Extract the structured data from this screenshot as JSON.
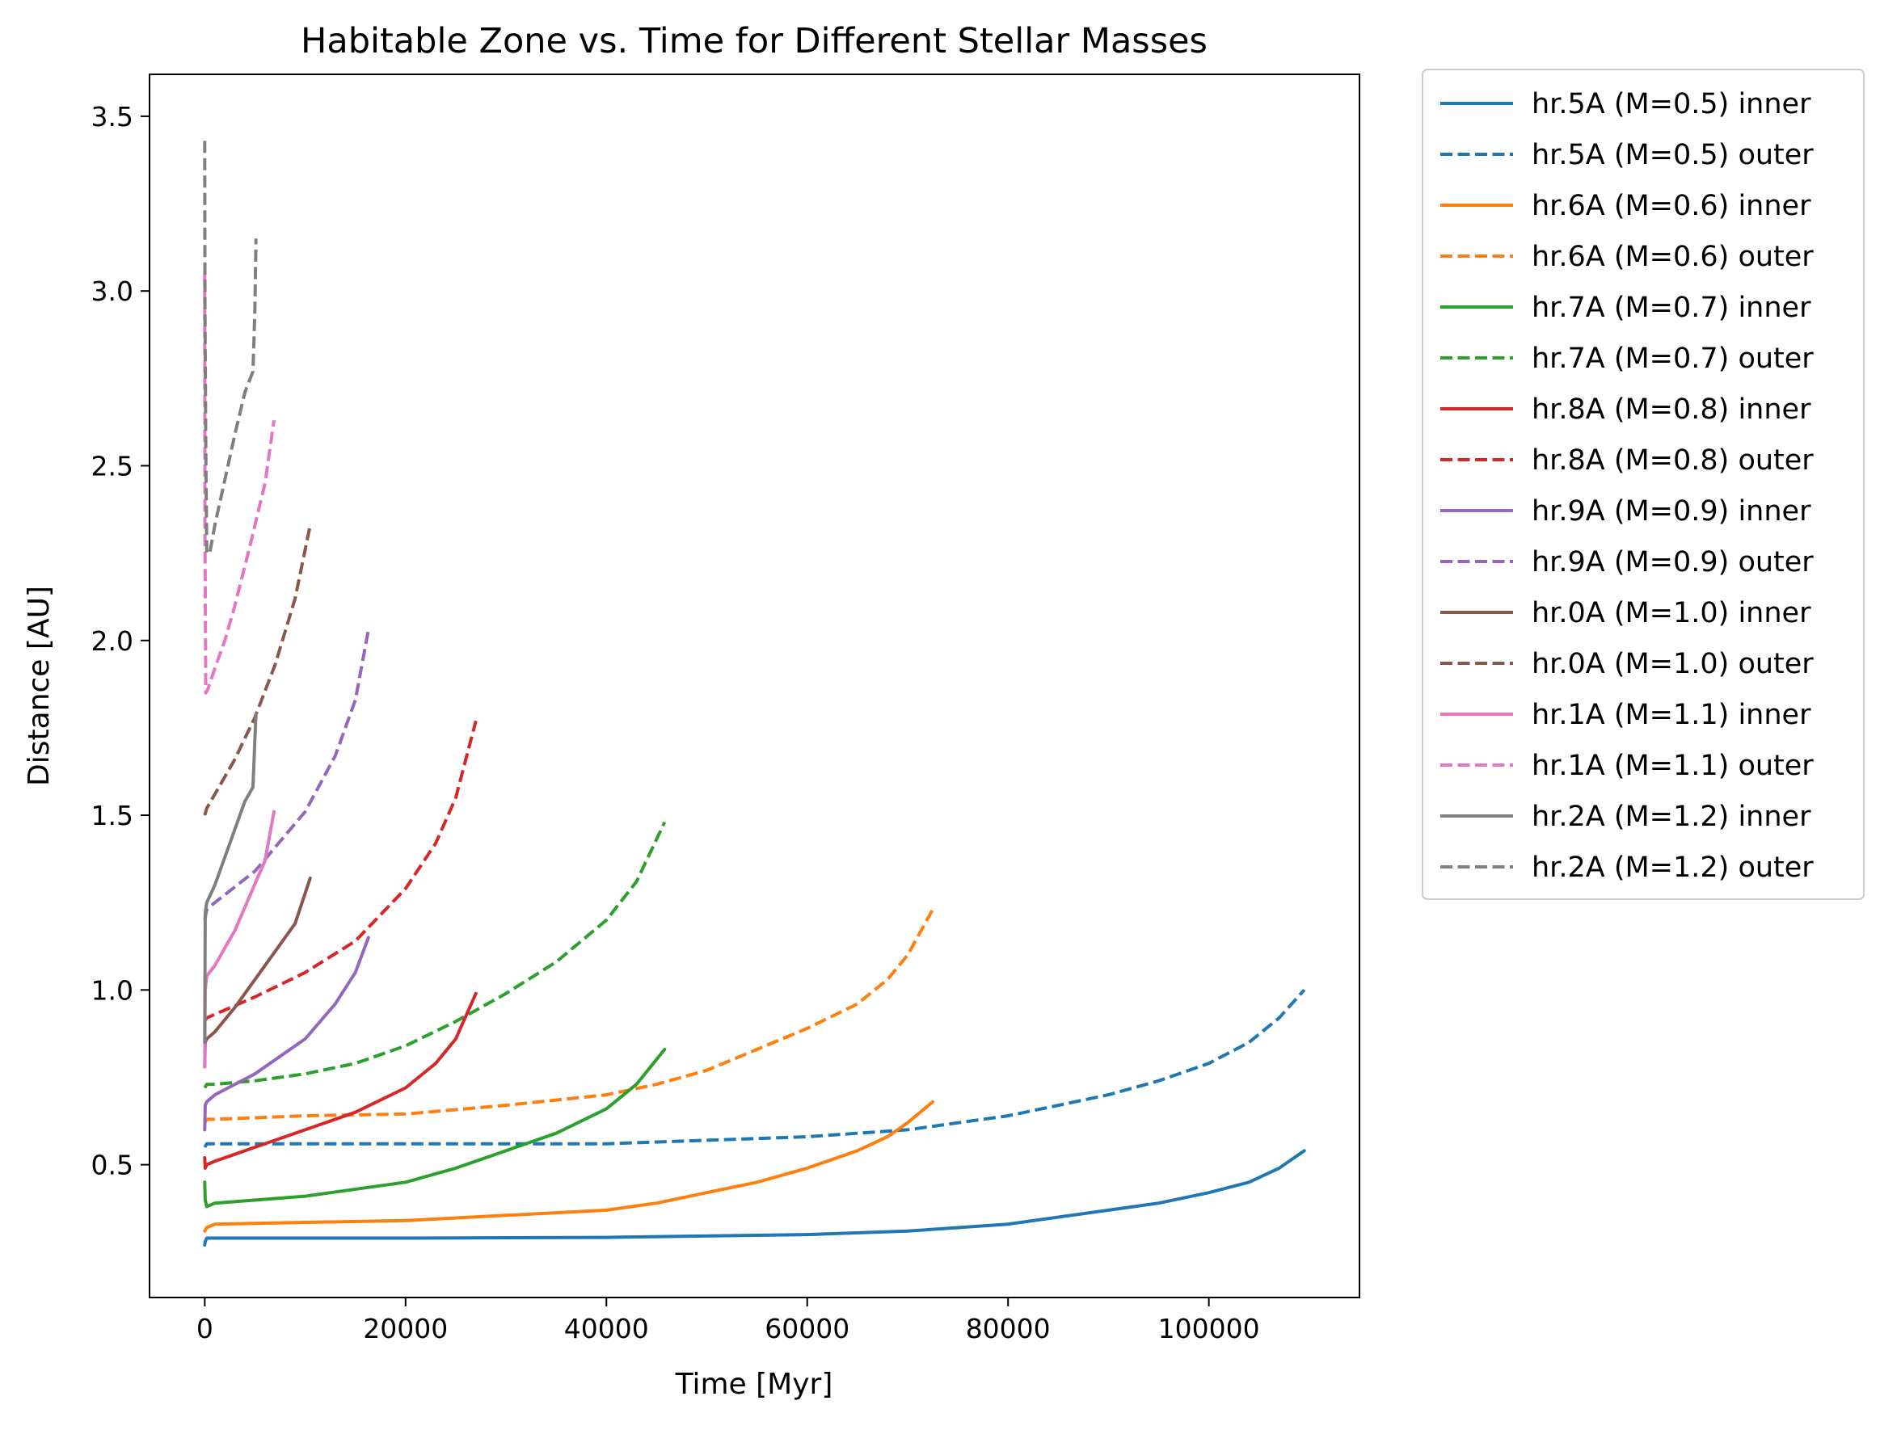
{
  "chart_data": {
    "type": "line",
    "title": "Habitable Zone vs. Time for Different Stellar Masses",
    "xlabel": "Time [Myr]",
    "ylabel": "Distance [AU]",
    "xlim": [
      -5500,
      115000
    ],
    "ylim": [
      0.12,
      3.62
    ],
    "xticks": [
      0,
      20000,
      40000,
      60000,
      80000,
      100000
    ],
    "xtick_labels": [
      "0",
      "20000",
      "40000",
      "60000",
      "80000",
      "100000"
    ],
    "yticks": [
      0.5,
      1.0,
      1.5,
      2.0,
      2.5,
      3.0,
      3.5
    ],
    "ytick_labels": [
      "0.5",
      "1.0",
      "1.5",
      "2.0",
      "2.5",
      "3.0",
      "3.5"
    ],
    "grid": false,
    "legend_position": "outside-right-top",
    "series": [
      {
        "name": "hr.5A (M=0.5) inner",
        "color": "#1f77b4",
        "style": "solid",
        "x": [
          0,
          50,
          200,
          1000,
          20000,
          40000,
          60000,
          70000,
          80000,
          90000,
          95000,
          100000,
          104000,
          107000,
          109500
        ],
        "y": [
          0.27,
          0.28,
          0.29,
          0.29,
          0.29,
          0.292,
          0.3,
          0.31,
          0.33,
          0.37,
          0.39,
          0.42,
          0.45,
          0.49,
          0.54
        ]
      },
      {
        "name": "hr.5A (M=0.5) outer",
        "color": "#1f77b4",
        "style": "dashed",
        "x": [
          0,
          200,
          1000,
          20000,
          40000,
          60000,
          70000,
          80000,
          90000,
          95000,
          100000,
          104000,
          107000,
          109500
        ],
        "y": [
          0.55,
          0.56,
          0.56,
          0.56,
          0.56,
          0.58,
          0.6,
          0.64,
          0.7,
          0.74,
          0.79,
          0.85,
          0.92,
          1.0
        ]
      },
      {
        "name": "hr.6A (M=0.6) inner",
        "color": "#ff7f0e",
        "style": "solid",
        "x": [
          0,
          200,
          1000,
          10000,
          20000,
          30000,
          40000,
          45000,
          50000,
          55000,
          60000,
          65000,
          68000,
          70000,
          72500
        ],
        "y": [
          0.31,
          0.32,
          0.33,
          0.335,
          0.34,
          0.355,
          0.37,
          0.39,
          0.42,
          0.45,
          0.49,
          0.54,
          0.58,
          0.62,
          0.68
        ]
      },
      {
        "name": "hr.6A (M=0.6) outer",
        "color": "#ff7f0e",
        "style": "dashed",
        "x": [
          0,
          200,
          1000,
          10000,
          20000,
          30000,
          40000,
          45000,
          50000,
          55000,
          60000,
          65000,
          68000,
          70000,
          72500
        ],
        "y": [
          0.62,
          0.63,
          0.63,
          0.64,
          0.645,
          0.67,
          0.7,
          0.73,
          0.77,
          0.83,
          0.89,
          0.96,
          1.03,
          1.1,
          1.23
        ]
      },
      {
        "name": "hr.7A (M=0.7) inner",
        "color": "#2ca02c",
        "style": "solid",
        "x": [
          0,
          50,
          200,
          1000,
          10000,
          20000,
          25000,
          30000,
          35000,
          40000,
          43000,
          45800
        ],
        "y": [
          0.45,
          0.4,
          0.38,
          0.39,
          0.41,
          0.45,
          0.49,
          0.54,
          0.59,
          0.66,
          0.73,
          0.83
        ]
      },
      {
        "name": "hr.7A (M=0.7) outer",
        "color": "#2ca02c",
        "style": "dashed",
        "x": [
          0,
          200,
          1000,
          5000,
          10000,
          15000,
          20000,
          25000,
          30000,
          35000,
          40000,
          43000,
          45800
        ],
        "y": [
          0.72,
          0.73,
          0.73,
          0.74,
          0.76,
          0.79,
          0.84,
          0.91,
          0.99,
          1.08,
          1.2,
          1.31,
          1.48
        ]
      },
      {
        "name": "hr.8A (M=0.8) inner",
        "color": "#d62728",
        "style": "solid",
        "x": [
          0,
          50,
          200,
          1000,
          5000,
          10000,
          15000,
          20000,
          23000,
          25000,
          27000
        ],
        "y": [
          0.52,
          0.49,
          0.5,
          0.51,
          0.55,
          0.6,
          0.65,
          0.72,
          0.79,
          0.86,
          0.99
        ]
      },
      {
        "name": "hr.8A (M=0.8) outer",
        "color": "#d62728",
        "style": "dashed",
        "x": [
          0,
          200,
          1000,
          5000,
          10000,
          15000,
          20000,
          23000,
          25000,
          27000
        ],
        "y": [
          0.91,
          0.92,
          0.93,
          0.98,
          1.05,
          1.14,
          1.29,
          1.42,
          1.55,
          1.77
        ]
      },
      {
        "name": "hr.9A (M=0.9) inner",
        "color": "#9467bd",
        "style": "solid",
        "x": [
          0,
          50,
          200,
          1000,
          5000,
          10000,
          13000,
          15000,
          16300
        ],
        "y": [
          0.6,
          0.67,
          0.68,
          0.7,
          0.76,
          0.86,
          0.96,
          1.05,
          1.15
        ]
      },
      {
        "name": "hr.9A (M=0.9) outer",
        "color": "#9467bd",
        "style": "dashed",
        "x": [
          0,
          200,
          1000,
          5000,
          10000,
          13000,
          15000,
          16300
        ],
        "y": [
          1.2,
          1.23,
          1.25,
          1.34,
          1.51,
          1.67,
          1.83,
          2.03
        ]
      },
      {
        "name": "hr.0A (M=1.0) inner",
        "color": "#8c564b",
        "style": "solid",
        "x": [
          0,
          50,
          200,
          1000,
          3000,
          5000,
          7000,
          9000,
          10500
        ],
        "y": [
          0.78,
          0.85,
          0.86,
          0.88,
          0.95,
          1.03,
          1.11,
          1.19,
          1.32
        ]
      },
      {
        "name": "hr.0A (M=1.0) outer",
        "color": "#8c564b",
        "style": "dashed",
        "x": [
          0,
          200,
          1000,
          3000,
          5000,
          7000,
          9000,
          10500
        ],
        "y": [
          1.5,
          1.52,
          1.56,
          1.66,
          1.78,
          1.93,
          2.12,
          2.33
        ]
      },
      {
        "name": "hr.1A (M=1.1) inner",
        "color": "#e377c2",
        "style": "solid",
        "x": [
          0,
          50,
          200,
          1000,
          2000,
          3000,
          4500,
          6000,
          6900
        ],
        "y": [
          0.78,
          1.0,
          1.04,
          1.07,
          1.12,
          1.17,
          1.27,
          1.37,
          1.51
        ]
      },
      {
        "name": "hr.1A (M=1.1) outer",
        "color": "#e377c2",
        "style": "dashed",
        "x": [
          0,
          20,
          100,
          300,
          1000,
          2000,
          3000,
          4500,
          6000,
          6900
        ],
        "y": [
          3.05,
          2.3,
          1.85,
          1.86,
          1.92,
          2.0,
          2.1,
          2.27,
          2.45,
          2.63
        ]
      },
      {
        "name": "hr.2A (M=1.2) inner",
        "color": "#7f7f7f",
        "style": "solid",
        "x": [
          0,
          50,
          200,
          1000,
          2000,
          3000,
          4000,
          4800,
          5000,
          5100
        ],
        "y": [
          0.85,
          1.22,
          1.25,
          1.3,
          1.38,
          1.46,
          1.54,
          1.58,
          1.72,
          1.79
        ]
      },
      {
        "name": "hr.2A (M=1.2) outer",
        "color": "#7f7f7f",
        "style": "dashed",
        "x": [
          0,
          20,
          100,
          200,
          500,
          1000,
          2000,
          3000,
          4000,
          4800,
          5000,
          5100
        ],
        "y": [
          3.43,
          2.95,
          2.55,
          2.25,
          2.25,
          2.33,
          2.46,
          2.59,
          2.71,
          2.77,
          2.95,
          3.15
        ]
      }
    ]
  }
}
